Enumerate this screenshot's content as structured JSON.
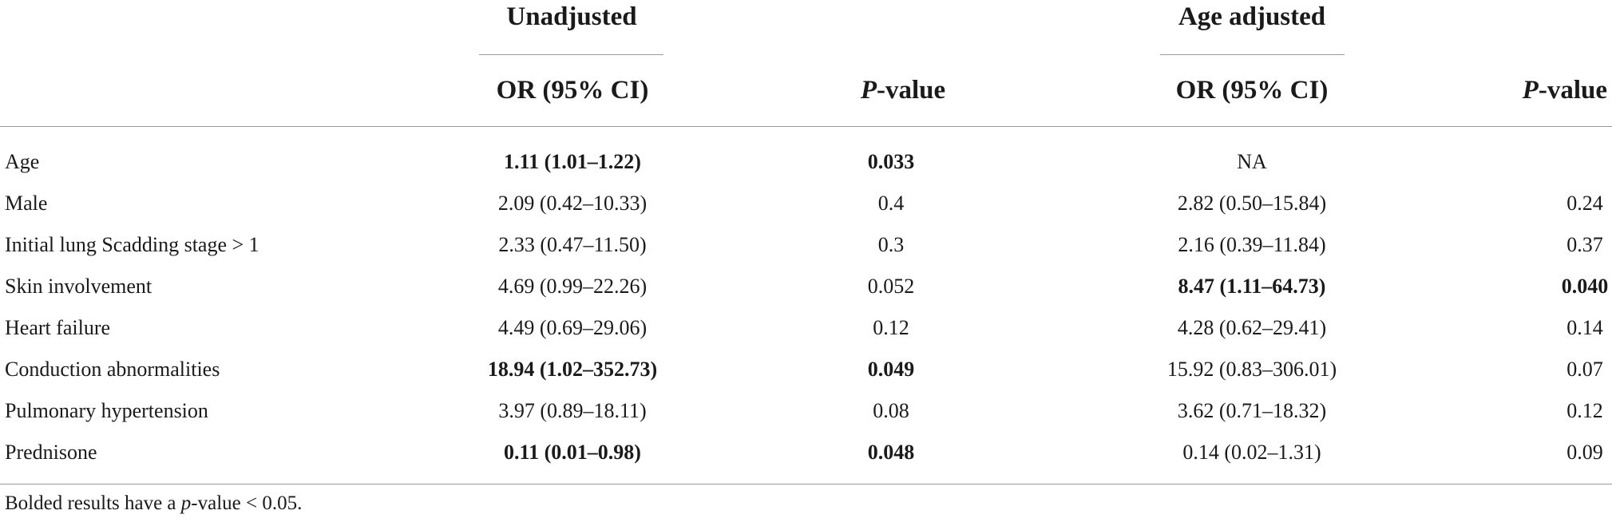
{
  "header": {
    "groups": [
      {
        "label": "Unadjusted"
      },
      {
        "label": "Age adjusted"
      }
    ],
    "columns": {
      "or_unadj": "OR (95% CI)",
      "p_unadj_italic": "P",
      "p_unadj_rest": "-value",
      "or_adj": "OR (95% CI)",
      "p_adj_italic": "P",
      "p_adj_rest": "-value"
    }
  },
  "rows": [
    {
      "label": "Age",
      "or_unadj": "1.11 (1.01–1.22)",
      "or_unadj_bold": true,
      "p_unadj": "0.033",
      "p_unadj_bold": true,
      "or_adj": "NA",
      "or_adj_bold": false,
      "p_adj": "",
      "p_adj_bold": false
    },
    {
      "label": "Male",
      "or_unadj": "2.09 (0.42–10.33)",
      "or_unadj_bold": false,
      "p_unadj": "0.4",
      "p_unadj_bold": false,
      "or_adj": "2.82 (0.50–15.84)",
      "or_adj_bold": false,
      "p_adj": "0.24",
      "p_adj_bold": false
    },
    {
      "label": "Initial lung Scadding stage > 1",
      "or_unadj": "2.33 (0.47–11.50)",
      "or_unadj_bold": false,
      "p_unadj": "0.3",
      "p_unadj_bold": false,
      "or_adj": "2.16 (0.39–11.84)",
      "or_adj_bold": false,
      "p_adj": "0.37",
      "p_adj_bold": false
    },
    {
      "label": "Skin involvement",
      "or_unadj": "4.69 (0.99–22.26)",
      "or_unadj_bold": false,
      "p_unadj": "0.052",
      "p_unadj_bold": false,
      "or_adj": "8.47 (1.11–64.73)",
      "or_adj_bold": true,
      "p_adj": "0.040",
      "p_adj_bold": true
    },
    {
      "label": "Heart failure",
      "or_unadj": "4.49 (0.69–29.06)",
      "or_unadj_bold": false,
      "p_unadj": "0.12",
      "p_unadj_bold": false,
      "or_adj": "4.28 (0.62–29.41)",
      "or_adj_bold": false,
      "p_adj": "0.14",
      "p_adj_bold": false
    },
    {
      "label": "Conduction abnormalities",
      "or_unadj": "18.94 (1.02–352.73)",
      "or_unadj_bold": true,
      "p_unadj": "0.049",
      "p_unadj_bold": true,
      "or_adj": "15.92 (0.83–306.01)",
      "or_adj_bold": false,
      "p_adj": "0.07",
      "p_adj_bold": false
    },
    {
      "label": "Pulmonary hypertension",
      "or_unadj": "3.97 (0.89–18.11)",
      "or_unadj_bold": false,
      "p_unadj": "0.08",
      "p_unadj_bold": false,
      "or_adj": "3.62 (0.71–18.32)",
      "or_adj_bold": false,
      "p_adj": "0.12",
      "p_adj_bold": false
    },
    {
      "label": "Prednisone",
      "or_unadj": "0.11 (0.01–0.98)",
      "or_unadj_bold": true,
      "p_unadj": "0.048",
      "p_unadj_bold": true,
      "or_adj": "0.14 (0.02–1.31)",
      "or_adj_bold": false,
      "p_adj": "0.09",
      "p_adj_bold": false
    }
  ],
  "footnote": {
    "before": "Bolded results have a ",
    "italic": "p",
    "after": "-value < 0.05."
  }
}
